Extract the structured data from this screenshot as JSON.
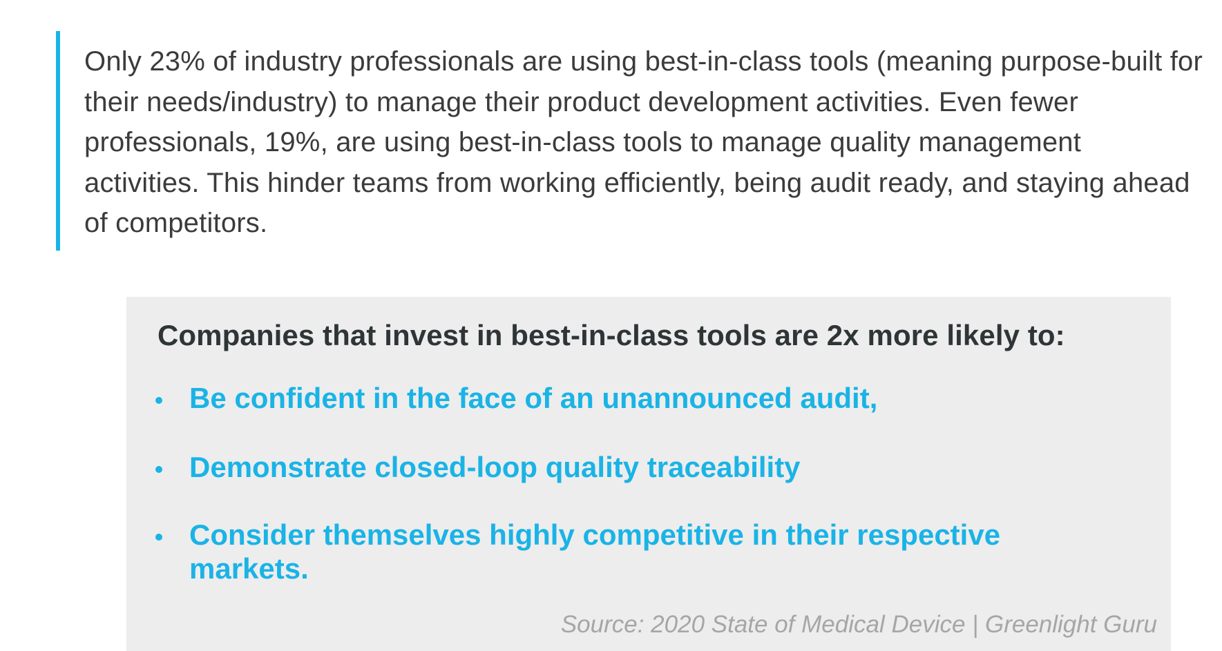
{
  "quote": {
    "text": "Only 23% of industry professionals are using best-in-class tools (meaning purpose-built for their needs/industry) to manage their product development activities. Even fewer professionals, 19%, are using best-in-class tools to manage quality management activities. This hinder teams from working efficiently, being audit ready, and staying ahead of competitors."
  },
  "callout": {
    "heading": "Companies that invest in best-in-class tools are 2x more likely to:",
    "items": [
      "Be confident in the face of an unannounced audit,",
      "Demonstrate closed-loop quality traceability",
      "Consider themselves highly competitive in their respective markets."
    ],
    "source": "Source: 2020 State of Medical Device | Greenlight Guru"
  },
  "colors": {
    "accent": "#1ab3e6",
    "body_text": "#3b3b3b",
    "heading_text": "#2f3537",
    "callout_background": "#ededed",
    "source_text": "#a6a6a6"
  }
}
